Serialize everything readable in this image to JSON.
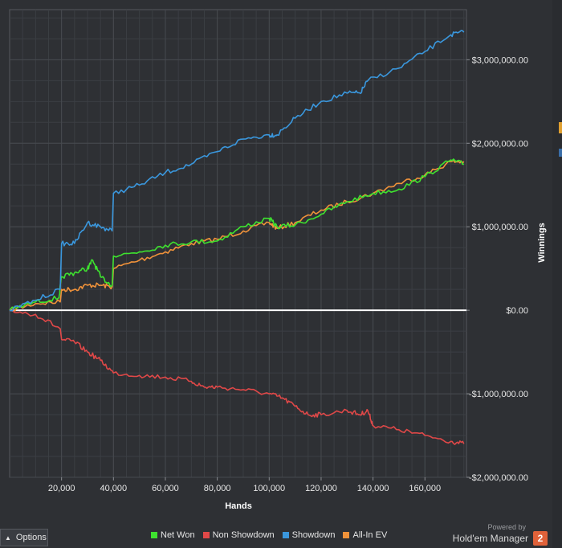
{
  "colors": {
    "background": "#2e3034",
    "grid": "#474a4f",
    "zero_line": "#ffffff",
    "net_won": "#3ee22f",
    "non_showdown": "#e04848",
    "showdown": "#3a97dd",
    "all_in_ev": "#f0923a",
    "brand_badge": "#e0623a"
  },
  "options": {
    "label": "Options",
    "icon": "chevron-up-icon"
  },
  "brand": {
    "powered_by": "Powered by",
    "name": "Hold'em Manager",
    "badge": "2"
  },
  "chart_data": {
    "type": "line",
    "xlabel": "Hands",
    "ylabel": "Winnings",
    "xlim": [
      0,
      176000
    ],
    "ylim": [
      -2000000,
      3600000
    ],
    "x_ticks": [
      20000,
      40000,
      60000,
      80000,
      100000,
      120000,
      140000,
      160000
    ],
    "x_tick_labels": [
      "20,000",
      "40,000",
      "60,000",
      "80,000",
      "100,000",
      "120,000",
      "140,000",
      "160,000"
    ],
    "y_ticks": [
      3000000,
      2000000,
      1000000,
      0,
      -1000000,
      -2000000
    ],
    "y_tick_labels": [
      "$3,000,000.00",
      "$2,000,000.00",
      "$1,000,000.00",
      "$0.00",
      "-$1,000,000.00",
      "-$2,000,000.00"
    ],
    "grid": true,
    "legend_position": "bottom",
    "series": [
      {
        "name": "Net Won",
        "color": "#3ee22f",
        "points": [
          [
            0,
            0
          ],
          [
            10000,
            100000
          ],
          [
            19000,
            150000
          ],
          [
            20000,
            400000
          ],
          [
            25000,
            450000
          ],
          [
            30000,
            500000
          ],
          [
            32000,
            600000
          ],
          [
            35000,
            400000
          ],
          [
            39500,
            300000
          ],
          [
            40000,
            650000
          ],
          [
            50000,
            700000
          ],
          [
            60000,
            780000
          ],
          [
            70000,
            820000
          ],
          [
            80000,
            830000
          ],
          [
            90000,
            1000000
          ],
          [
            100000,
            1100000
          ],
          [
            103000,
            1000000
          ],
          [
            110000,
            1020000
          ],
          [
            120000,
            1150000
          ],
          [
            130000,
            1300000
          ],
          [
            140000,
            1400000
          ],
          [
            150000,
            1450000
          ],
          [
            160000,
            1600000
          ],
          [
            170000,
            1800000
          ],
          [
            175000,
            1750000
          ]
        ]
      },
      {
        "name": "Non Showdown",
        "color": "#e04848",
        "points": [
          [
            0,
            0
          ],
          [
            10000,
            -50000
          ],
          [
            19500,
            -220000
          ],
          [
            20000,
            -350000
          ],
          [
            25000,
            -380000
          ],
          [
            30000,
            -500000
          ],
          [
            35000,
            -600000
          ],
          [
            40000,
            -750000
          ],
          [
            50000,
            -780000
          ],
          [
            60000,
            -800000
          ],
          [
            70000,
            -850000
          ],
          [
            75000,
            -920000
          ],
          [
            80000,
            -920000
          ],
          [
            90000,
            -950000
          ],
          [
            100000,
            -1000000
          ],
          [
            105000,
            -1050000
          ],
          [
            110000,
            -1150000
          ],
          [
            115000,
            -1250000
          ],
          [
            120000,
            -1250000
          ],
          [
            130000,
            -1200000
          ],
          [
            135000,
            -1250000
          ],
          [
            138000,
            -1200000
          ],
          [
            140000,
            -1380000
          ],
          [
            150000,
            -1430000
          ],
          [
            160000,
            -1500000
          ],
          [
            170000,
            -1570000
          ],
          [
            175000,
            -1600000
          ]
        ]
      },
      {
        "name": "Showdown",
        "color": "#3a97dd",
        "points": [
          [
            0,
            0
          ],
          [
            10000,
            120000
          ],
          [
            19500,
            250000
          ],
          [
            20000,
            800000
          ],
          [
            25000,
            800000
          ],
          [
            30000,
            1050000
          ],
          [
            35000,
            1000000
          ],
          [
            39500,
            950000
          ],
          [
            40000,
            1400000
          ],
          [
            50000,
            1500000
          ],
          [
            60000,
            1650000
          ],
          [
            70000,
            1750000
          ],
          [
            80000,
            1900000
          ],
          [
            90000,
            2050000
          ],
          [
            100000,
            2100000
          ],
          [
            103000,
            2100000
          ],
          [
            110000,
            2300000
          ],
          [
            120000,
            2500000
          ],
          [
            130000,
            2600000
          ],
          [
            135000,
            2600000
          ],
          [
            138000,
            2750000
          ],
          [
            150000,
            2900000
          ],
          [
            160000,
            3100000
          ],
          [
            170000,
            3300000
          ],
          [
            175000,
            3330000
          ]
        ]
      },
      {
        "name": "All-In EV",
        "color": "#f0923a",
        "points": [
          [
            0,
            0
          ],
          [
            10000,
            80000
          ],
          [
            19500,
            100000
          ],
          [
            20000,
            250000
          ],
          [
            25000,
            250000
          ],
          [
            30000,
            300000
          ],
          [
            35000,
            300000
          ],
          [
            39500,
            280000
          ],
          [
            40000,
            500000
          ],
          [
            50000,
            600000
          ],
          [
            60000,
            700000
          ],
          [
            70000,
            800000
          ],
          [
            80000,
            850000
          ],
          [
            90000,
            950000
          ],
          [
            100000,
            1050000
          ],
          [
            103000,
            980000
          ],
          [
            110000,
            1050000
          ],
          [
            120000,
            1200000
          ],
          [
            130000,
            1300000
          ],
          [
            140000,
            1400000
          ],
          [
            150000,
            1520000
          ],
          [
            160000,
            1620000
          ],
          [
            170000,
            1780000
          ],
          [
            175000,
            1780000
          ]
        ]
      }
    ]
  }
}
